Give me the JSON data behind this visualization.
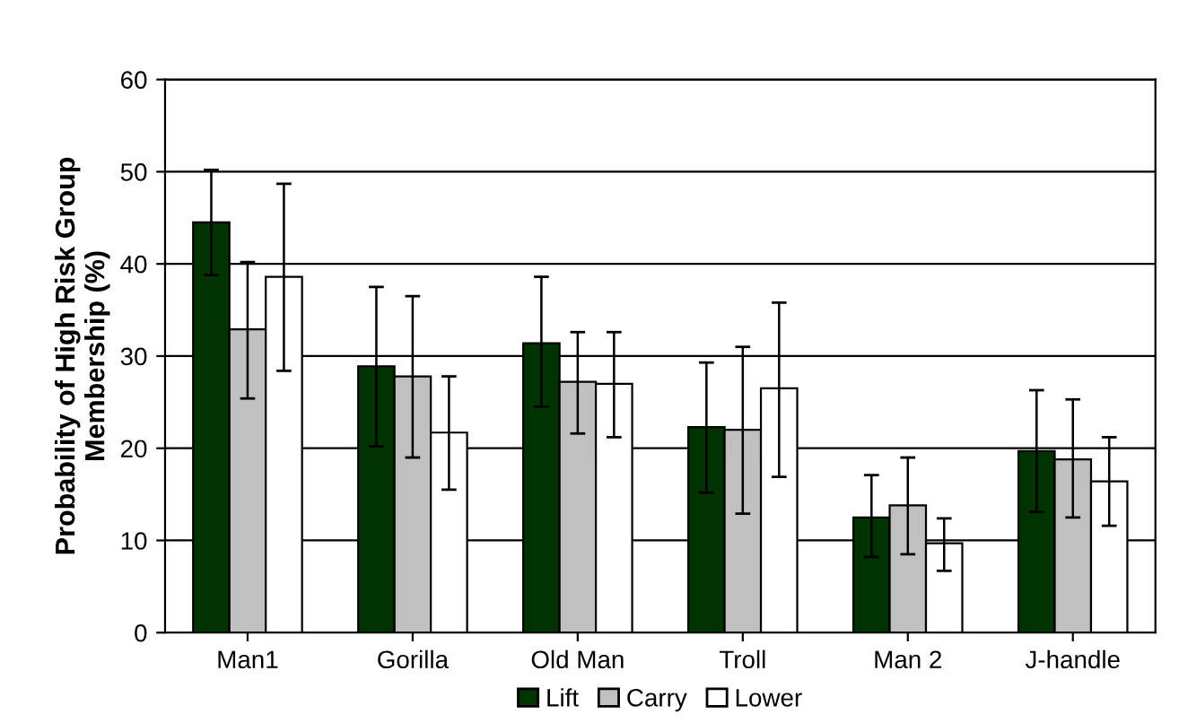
{
  "chart_data": {
    "type": "bar",
    "ylabel": "Probability of High Risk Group\nMembership (%)",
    "categories": [
      "Man1",
      "Gorilla",
      "Old Man",
      "Troll",
      "Man 2",
      "J-handle"
    ],
    "series": [
      {
        "name": "Lift",
        "color": "#003300",
        "values": [
          44.5,
          28.9,
          31.4,
          22.3,
          12.5,
          19.7
        ],
        "errors": [
          [
            38.8,
            50.2
          ],
          [
            20.2,
            37.5
          ],
          [
            24.5,
            38.6
          ],
          [
            15.2,
            29.3
          ],
          [
            8.2,
            17.1
          ],
          [
            13.1,
            26.3
          ]
        ]
      },
      {
        "name": "Carry",
        "color": "#c0c0c0",
        "values": [
          32.9,
          27.8,
          27.2,
          22.0,
          13.8,
          18.8
        ],
        "errors": [
          [
            25.4,
            40.2
          ],
          [
            19.0,
            36.5
          ],
          [
            21.6,
            32.6
          ],
          [
            12.9,
            31.0
          ],
          [
            8.5,
            19.0
          ],
          [
            12.5,
            25.3
          ]
        ]
      },
      {
        "name": "Lower",
        "color": "#ffffff",
        "values": [
          38.6,
          21.7,
          27.0,
          26.5,
          9.7,
          16.4
        ],
        "errors": [
          [
            28.4,
            48.7
          ],
          [
            15.5,
            27.8
          ],
          [
            21.2,
            32.6
          ],
          [
            16.9,
            35.8
          ],
          [
            6.7,
            12.4
          ],
          [
            11.6,
            21.2
          ]
        ]
      }
    ],
    "ylim": [
      0,
      60
    ],
    "yticks": [
      0,
      10,
      20,
      30,
      40,
      50,
      60
    ],
    "grid": "y",
    "legend": "bottom"
  }
}
